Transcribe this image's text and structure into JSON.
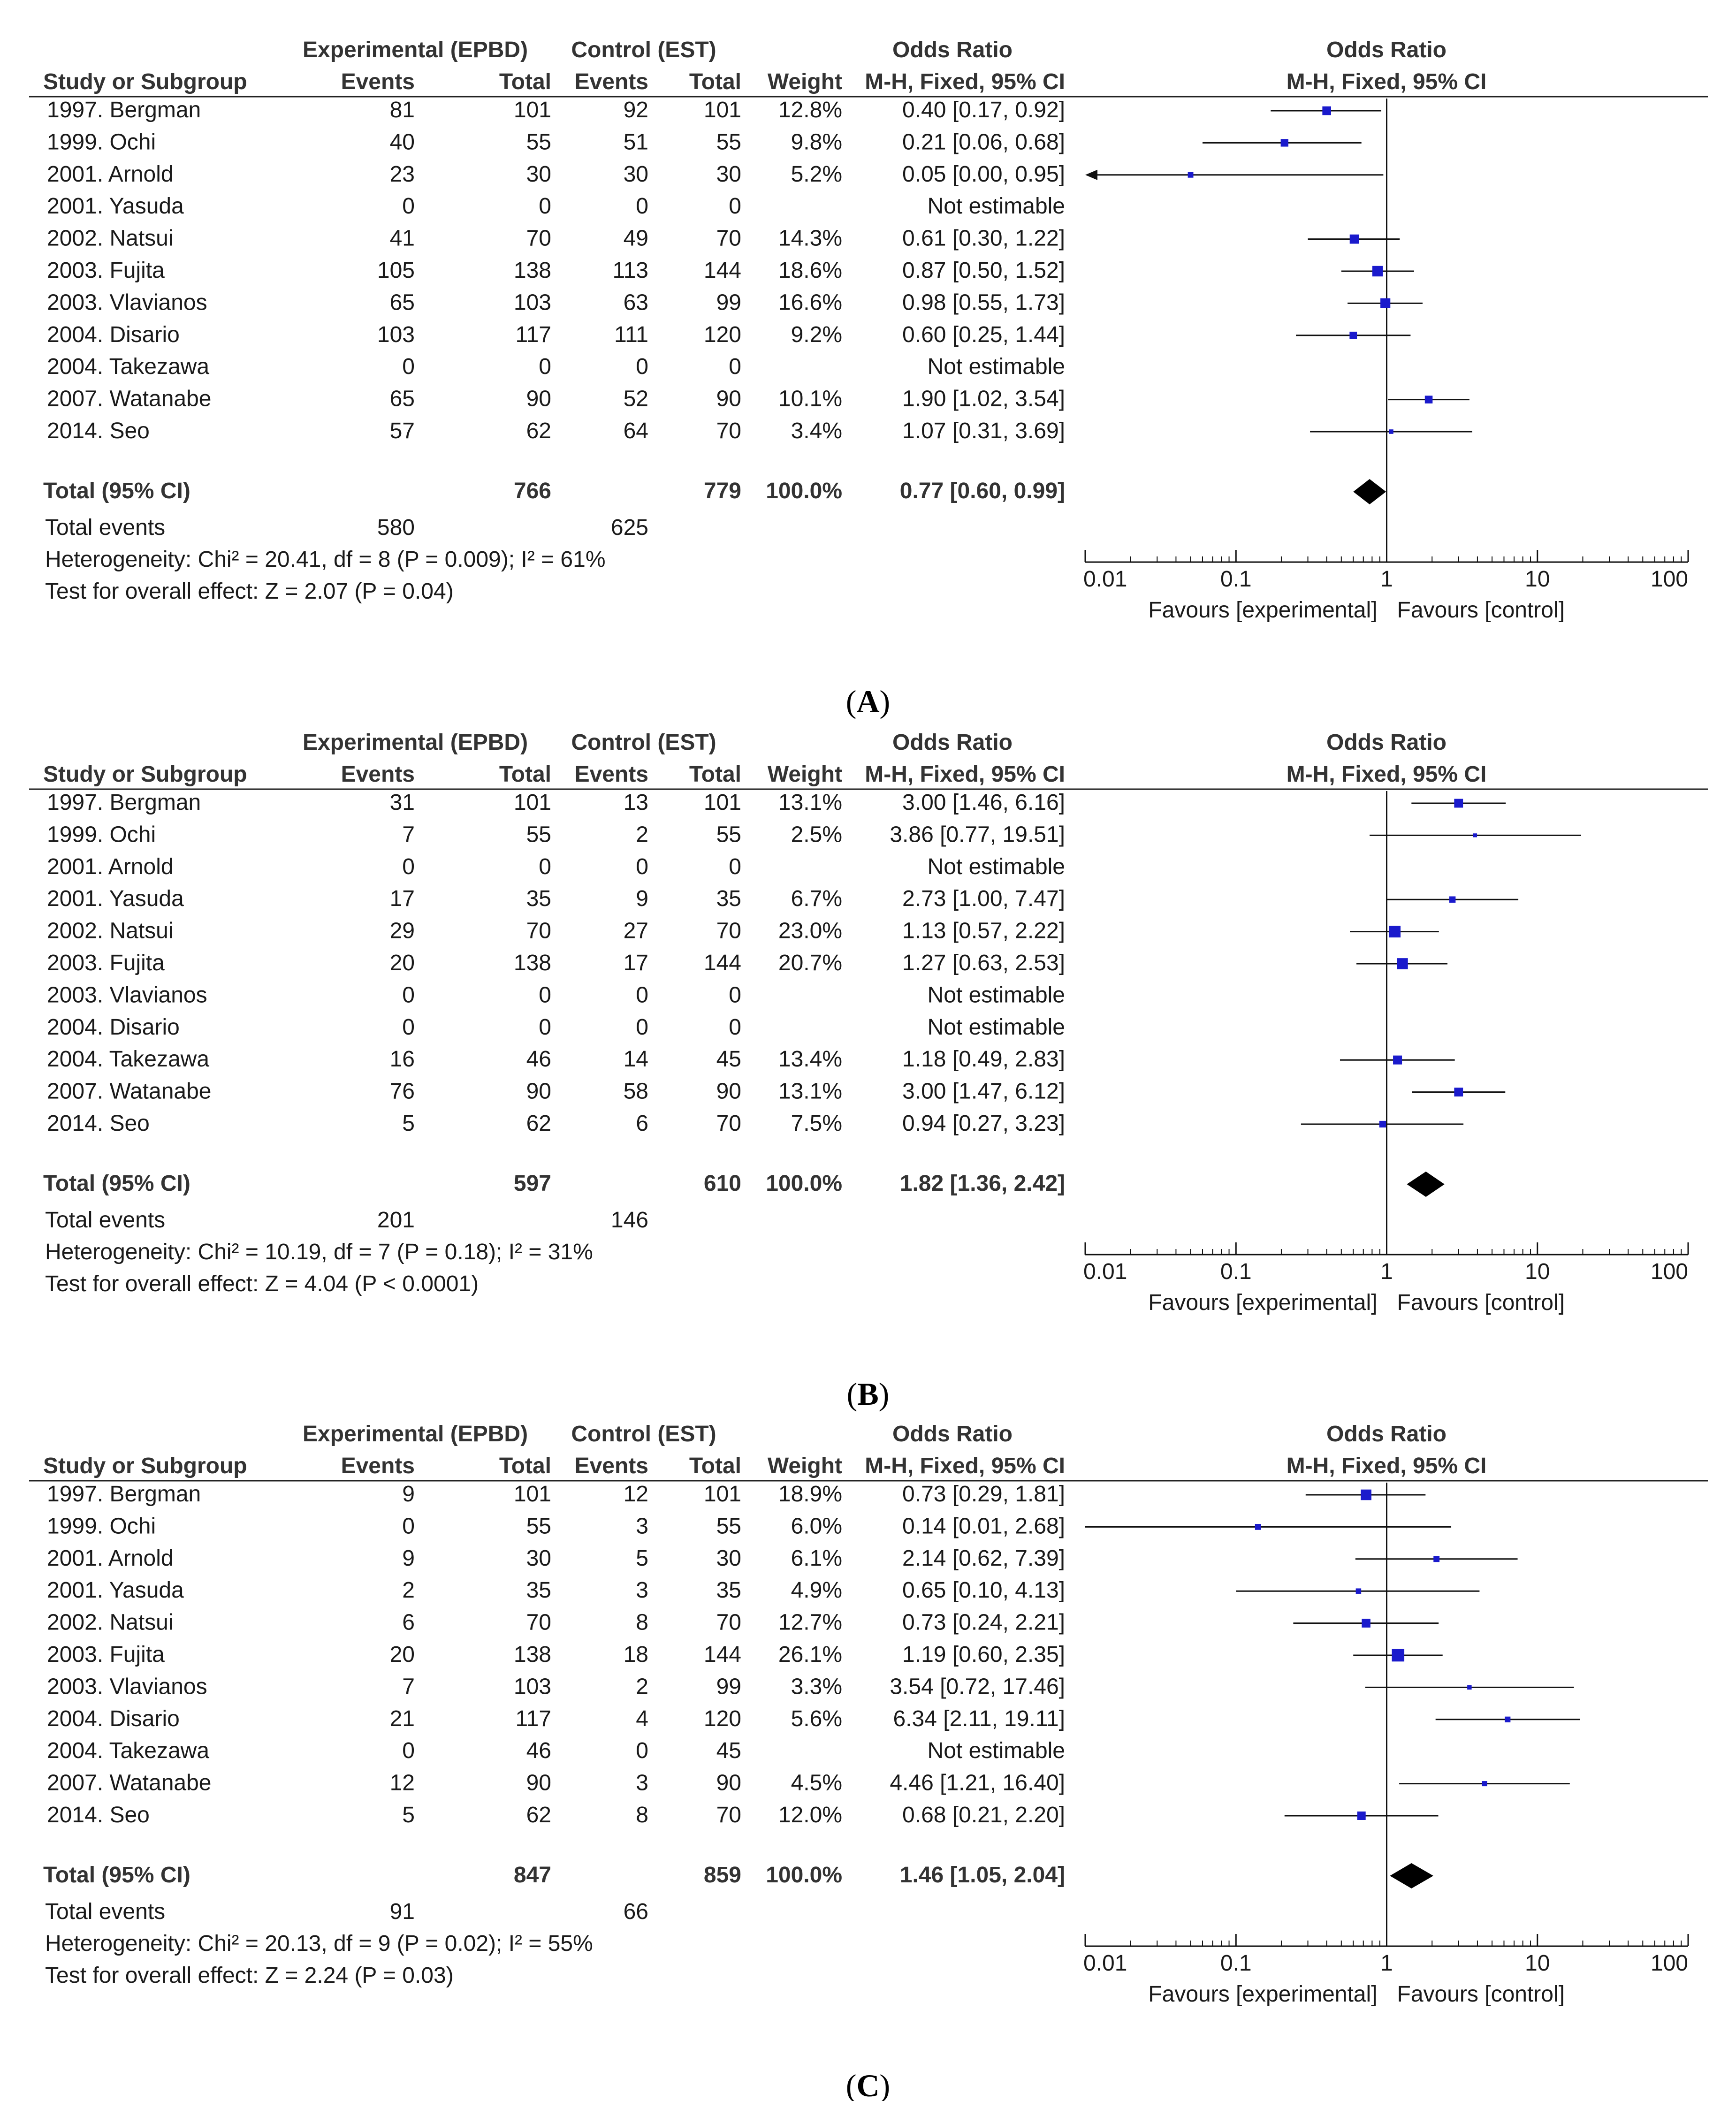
{
  "labels": {
    "exp_group": "Experimental (EPBD)",
    "ctrl_group": "Control (EST)",
    "odds_ratio": "Odds Ratio",
    "study": "Study or Subgroup",
    "events": "Events",
    "total": "Total",
    "weight": "Weight",
    "method": "M-H, Fixed, 95% CI",
    "total_ci": "Total (95% CI)",
    "total_events": "Total events",
    "favours_exp": "Favours [experimental]",
    "favours_ctrl": "Favours [control]",
    "ticks": [
      "0.01",
      "0.1",
      "1",
      "10",
      "100"
    ]
  },
  "chart_data": [
    {
      "type": "forest",
      "caption": "A",
      "axis": {
        "scale": "log",
        "xlim": [
          0.01,
          100
        ],
        "null_line": 1
      },
      "studies": [
        {
          "name": "1997. Bergman",
          "exp_events": "81",
          "exp_total": "101",
          "ctl_events": "92",
          "ctl_total": "101",
          "weight": "12.8%",
          "ci_text": "0.40 [0.17, 0.92]",
          "or": 0.4,
          "lo": 0.17,
          "hi": 0.92
        },
        {
          "name": "1999. Ochi",
          "exp_events": "40",
          "exp_total": "55",
          "ctl_events": "51",
          "ctl_total": "55",
          "weight": "9.8%",
          "ci_text": "0.21 [0.06, 0.68]",
          "or": 0.21,
          "lo": 0.06,
          "hi": 0.68
        },
        {
          "name": "2001. Arnold",
          "exp_events": "23",
          "exp_total": "30",
          "ctl_events": "30",
          "ctl_total": "30",
          "weight": "5.2%",
          "ci_text": "0.05 [0.00, 0.95]",
          "or": 0.05,
          "lo": 0.0,
          "hi": 0.95
        },
        {
          "name": "2001. Yasuda",
          "exp_events": "0",
          "exp_total": "0",
          "ctl_events": "0",
          "ctl_total": "0",
          "weight": "",
          "ci_text": "Not estimable",
          "or": null,
          "lo": null,
          "hi": null
        },
        {
          "name": "2002. Natsui",
          "exp_events": "41",
          "exp_total": "70",
          "ctl_events": "49",
          "ctl_total": "70",
          "weight": "14.3%",
          "ci_text": "0.61 [0.30, 1.22]",
          "or": 0.61,
          "lo": 0.3,
          "hi": 1.22
        },
        {
          "name": "2003. Fujita",
          "exp_events": "105",
          "exp_total": "138",
          "ctl_events": "113",
          "ctl_total": "144",
          "weight": "18.6%",
          "ci_text": "0.87 [0.50, 1.52]",
          "or": 0.87,
          "lo": 0.5,
          "hi": 1.52
        },
        {
          "name": "2003. Vlavianos",
          "exp_events": "65",
          "exp_total": "103",
          "ctl_events": "63",
          "ctl_total": "99",
          "weight": "16.6%",
          "ci_text": "0.98 [0.55, 1.73]",
          "or": 0.98,
          "lo": 0.55,
          "hi": 1.73
        },
        {
          "name": "2004. Disario",
          "exp_events": "103",
          "exp_total": "117",
          "ctl_events": "111",
          "ctl_total": "120",
          "weight": "9.2%",
          "ci_text": "0.60 [0.25, 1.44]",
          "or": 0.6,
          "lo": 0.25,
          "hi": 1.44
        },
        {
          "name": "2004. Takezawa",
          "exp_events": "0",
          "exp_total": "0",
          "ctl_events": "0",
          "ctl_total": "0",
          "weight": "",
          "ci_text": "Not estimable",
          "or": null,
          "lo": null,
          "hi": null
        },
        {
          "name": "2007. Watanabe",
          "exp_events": "65",
          "exp_total": "90",
          "ctl_events": "52",
          "ctl_total": "90",
          "weight": "10.1%",
          "ci_text": "1.90 [1.02, 3.54]",
          "or": 1.9,
          "lo": 1.02,
          "hi": 3.54
        },
        {
          "name": "2014. Seo",
          "exp_events": "57",
          "exp_total": "62",
          "ctl_events": "64",
          "ctl_total": "70",
          "weight": "3.4%",
          "ci_text": "1.07 [0.31, 3.69]",
          "or": 1.07,
          "lo": 0.31,
          "hi": 3.69
        }
      ],
      "total": {
        "exp_total": "766",
        "ctl_total": "779",
        "weight": "100.0%",
        "ci_text": "0.77 [0.60, 0.99]",
        "or": 0.77,
        "lo": 0.6,
        "hi": 0.99
      },
      "total_events": {
        "exp": "580",
        "ctl": "625"
      },
      "heterogeneity": "Heterogeneity: Chi² = 20.41, df = 8 (P = 0.009); I² = 61%",
      "overall_effect": "Test for overall effect: Z = 2.07 (P = 0.04)"
    },
    {
      "type": "forest",
      "caption": "B",
      "axis": {
        "scale": "log",
        "xlim": [
          0.01,
          100
        ],
        "null_line": 1
      },
      "studies": [
        {
          "name": "1997. Bergman",
          "exp_events": "31",
          "exp_total": "101",
          "ctl_events": "13",
          "ctl_total": "101",
          "weight": "13.1%",
          "ci_text": "3.00 [1.46, 6.16]",
          "or": 3.0,
          "lo": 1.46,
          "hi": 6.16
        },
        {
          "name": "1999. Ochi",
          "exp_events": "7",
          "exp_total": "55",
          "ctl_events": "2",
          "ctl_total": "55",
          "weight": "2.5%",
          "ci_text": "3.86 [0.77, 19.51]",
          "or": 3.86,
          "lo": 0.77,
          "hi": 19.51
        },
        {
          "name": "2001. Arnold",
          "exp_events": "0",
          "exp_total": "0",
          "ctl_events": "0",
          "ctl_total": "0",
          "weight": "",
          "ci_text": "Not estimable",
          "or": null,
          "lo": null,
          "hi": null
        },
        {
          "name": "2001. Yasuda",
          "exp_events": "17",
          "exp_total": "35",
          "ctl_events": "9",
          "ctl_total": "35",
          "weight": "6.7%",
          "ci_text": "2.73 [1.00, 7.47]",
          "or": 2.73,
          "lo": 1.0,
          "hi": 7.47
        },
        {
          "name": "2002. Natsui",
          "exp_events": "29",
          "exp_total": "70",
          "ctl_events": "27",
          "ctl_total": "70",
          "weight": "23.0%",
          "ci_text": "1.13 [0.57, 2.22]",
          "or": 1.13,
          "lo": 0.57,
          "hi": 2.22
        },
        {
          "name": "2003. Fujita",
          "exp_events": "20",
          "exp_total": "138",
          "ctl_events": "17",
          "ctl_total": "144",
          "weight": "20.7%",
          "ci_text": "1.27 [0.63, 2.53]",
          "or": 1.27,
          "lo": 0.63,
          "hi": 2.53
        },
        {
          "name": "2003. Vlavianos",
          "exp_events": "0",
          "exp_total": "0",
          "ctl_events": "0",
          "ctl_total": "0",
          "weight": "",
          "ci_text": "Not estimable",
          "or": null,
          "lo": null,
          "hi": null
        },
        {
          "name": "2004. Disario",
          "exp_events": "0",
          "exp_total": "0",
          "ctl_events": "0",
          "ctl_total": "0",
          "weight": "",
          "ci_text": "Not estimable",
          "or": null,
          "lo": null,
          "hi": null
        },
        {
          "name": "2004. Takezawa",
          "exp_events": "16",
          "exp_total": "46",
          "ctl_events": "14",
          "ctl_total": "45",
          "weight": "13.4%",
          "ci_text": "1.18 [0.49, 2.83]",
          "or": 1.18,
          "lo": 0.49,
          "hi": 2.83
        },
        {
          "name": "2007. Watanabe",
          "exp_events": "76",
          "exp_total": "90",
          "ctl_events": "58",
          "ctl_total": "90",
          "weight": "13.1%",
          "ci_text": "3.00 [1.47, 6.12]",
          "or": 3.0,
          "lo": 1.47,
          "hi": 6.12
        },
        {
          "name": "2014. Seo",
          "exp_events": "5",
          "exp_total": "62",
          "ctl_events": "6",
          "ctl_total": "70",
          "weight": "7.5%",
          "ci_text": "0.94 [0.27, 3.23]",
          "or": 0.94,
          "lo": 0.27,
          "hi": 3.23
        }
      ],
      "total": {
        "exp_total": "597",
        "ctl_total": "610",
        "weight": "100.0%",
        "ci_text": "1.82 [1.36, 2.42]",
        "or": 1.82,
        "lo": 1.36,
        "hi": 2.42
      },
      "total_events": {
        "exp": "201",
        "ctl": "146"
      },
      "heterogeneity": "Heterogeneity: Chi² = 10.19, df = 7 (P = 0.18); I² = 31%",
      "overall_effect": "Test for overall effect: Z = 4.04 (P < 0.0001)"
    },
    {
      "type": "forest",
      "caption": "C",
      "axis": {
        "scale": "log",
        "xlim": [
          0.01,
          100
        ],
        "null_line": 1
      },
      "studies": [
        {
          "name": "1997. Bergman",
          "exp_events": "9",
          "exp_total": "101",
          "ctl_events": "12",
          "ctl_total": "101",
          "weight": "18.9%",
          "ci_text": "0.73 [0.29, 1.81]",
          "or": 0.73,
          "lo": 0.29,
          "hi": 1.81
        },
        {
          "name": "1999. Ochi",
          "exp_events": "0",
          "exp_total": "55",
          "ctl_events": "3",
          "ctl_total": "55",
          "weight": "6.0%",
          "ci_text": "0.14 [0.01, 2.68]",
          "or": 0.14,
          "lo": 0.01,
          "hi": 2.68
        },
        {
          "name": "2001. Arnold",
          "exp_events": "9",
          "exp_total": "30",
          "ctl_events": "5",
          "ctl_total": "30",
          "weight": "6.1%",
          "ci_text": "2.14 [0.62, 7.39]",
          "or": 2.14,
          "lo": 0.62,
          "hi": 7.39
        },
        {
          "name": "2001. Yasuda",
          "exp_events": "2",
          "exp_total": "35",
          "ctl_events": "3",
          "ctl_total": "35",
          "weight": "4.9%",
          "ci_text": "0.65 [0.10, 4.13]",
          "or": 0.65,
          "lo": 0.1,
          "hi": 4.13
        },
        {
          "name": "2002. Natsui",
          "exp_events": "6",
          "exp_total": "70",
          "ctl_events": "8",
          "ctl_total": "70",
          "weight": "12.7%",
          "ci_text": "0.73 [0.24, 2.21]",
          "or": 0.73,
          "lo": 0.24,
          "hi": 2.21
        },
        {
          "name": "2003. Fujita",
          "exp_events": "20",
          "exp_total": "138",
          "ctl_events": "18",
          "ctl_total": "144",
          "weight": "26.1%",
          "ci_text": "1.19 [0.60, 2.35]",
          "or": 1.19,
          "lo": 0.6,
          "hi": 2.35
        },
        {
          "name": "2003. Vlavianos",
          "exp_events": "7",
          "exp_total": "103",
          "ctl_events": "2",
          "ctl_total": "99",
          "weight": "3.3%",
          "ci_text": "3.54 [0.72, 17.46]",
          "or": 3.54,
          "lo": 0.72,
          "hi": 17.46
        },
        {
          "name": "2004. Disario",
          "exp_events": "21",
          "exp_total": "117",
          "ctl_events": "4",
          "ctl_total": "120",
          "weight": "5.6%",
          "ci_text": "6.34 [2.11, 19.11]",
          "or": 6.34,
          "lo": 2.11,
          "hi": 19.11
        },
        {
          "name": "2004. Takezawa",
          "exp_events": "0",
          "exp_total": "46",
          "ctl_events": "0",
          "ctl_total": "45",
          "weight": "",
          "ci_text": "Not estimable",
          "or": null,
          "lo": null,
          "hi": null
        },
        {
          "name": "2007. Watanabe",
          "exp_events": "12",
          "exp_total": "90",
          "ctl_events": "3",
          "ctl_total": "90",
          "weight": "4.5%",
          "ci_text": "4.46 [1.21, 16.40]",
          "or": 4.46,
          "lo": 1.21,
          "hi": 16.4
        },
        {
          "name": "2014. Seo",
          "exp_events": "5",
          "exp_total": "62",
          "ctl_events": "8",
          "ctl_total": "70",
          "weight": "12.0%",
          "ci_text": "0.68 [0.21, 2.20]",
          "or": 0.68,
          "lo": 0.21,
          "hi": 2.2
        }
      ],
      "total": {
        "exp_total": "847",
        "ctl_total": "859",
        "weight": "100.0%",
        "ci_text": "1.46 [1.05, 2.04]",
        "or": 1.46,
        "lo": 1.05,
        "hi": 2.04
      },
      "total_events": {
        "exp": "91",
        "ctl": "66"
      },
      "heterogeneity": "Heterogeneity: Chi² = 20.13, df = 9 (P = 0.02); I² = 55%",
      "overall_effect": "Test for overall effect: Z = 2.24 (P = 0.03)"
    }
  ]
}
